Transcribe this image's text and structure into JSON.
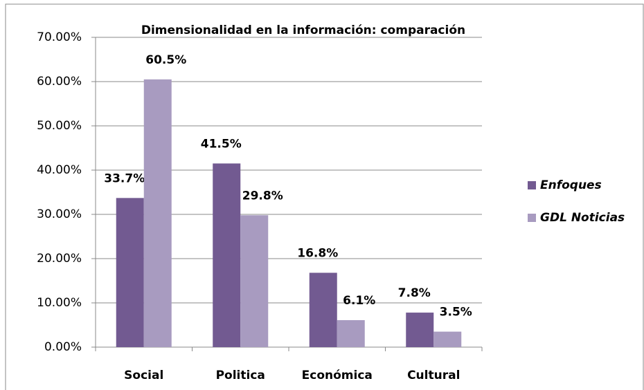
{
  "chart_data": {
    "type": "bar",
    "title": "Dimensionalidad en la información: comparación",
    "categories": [
      "Social",
      "Politica",
      "Económica",
      "Cultural"
    ],
    "series": [
      {
        "name": "Enfoques",
        "color": "#725a91",
        "values": [
          33.7,
          41.5,
          16.8,
          7.8
        ],
        "value_labels": [
          "33.7%",
          "41.5%",
          "16.8%",
          "7.8%"
        ]
      },
      {
        "name": "GDL Noticias",
        "color": "#a89bc0",
        "values": [
          60.5,
          29.8,
          6.1,
          3.5
        ],
        "value_labels": [
          "60.5%",
          "29.8%",
          "6.1%",
          "3.5%"
        ]
      }
    ],
    "ylim": [
      0,
      70
    ],
    "yticks": [
      {
        "value": 0,
        "label": "0.00%"
      },
      {
        "value": 10,
        "label": "10.00%"
      },
      {
        "value": 20,
        "label": "20.00%"
      },
      {
        "value": 30,
        "label": "30.00%"
      },
      {
        "value": 40,
        "label": "40.00%"
      },
      {
        "value": 50,
        "label": "50.00%"
      },
      {
        "value": 60,
        "label": "60.00%"
      },
      {
        "value": 70,
        "label": "70.00%"
      }
    ],
    "grid": true,
    "legend": "right"
  }
}
